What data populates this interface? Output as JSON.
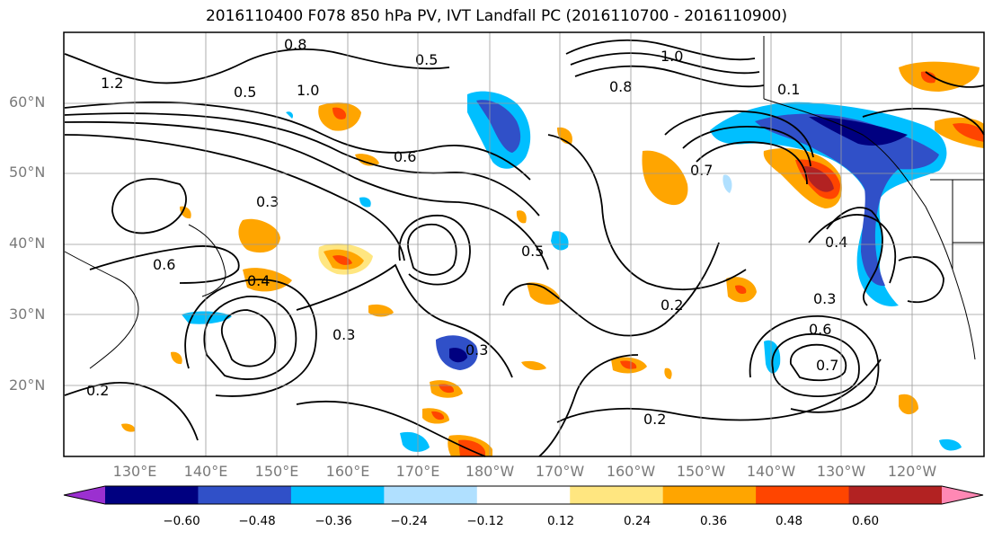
{
  "title": "2016110400 F078 850 hPa PV, IVT Landfall PC (2016110700 - 2016110900)",
  "map": {
    "lat_labels": [
      "60°N",
      "50°N",
      "40°N",
      "30°N",
      "20°N"
    ],
    "lon_labels": [
      "130°E",
      "140°E",
      "150°E",
      "160°E",
      "170°E",
      "180°W",
      "170°W",
      "160°W",
      "150°W",
      "140°W",
      "130°W",
      "120°W"
    ],
    "contour_labels": [
      "0.8",
      "1.0",
      "1.2",
      "0.5",
      "0.6",
      "0.7",
      "0.1",
      "0.3",
      "0.4",
      "0.2",
      "0.5",
      "0.3",
      "0.2",
      "0.6",
      "0.7",
      "0.8",
      "1.0",
      "0.5",
      "0.3",
      "0.6",
      "0.4",
      "0.3",
      "0.2"
    ]
  },
  "colorbar": {
    "ticks": [
      "−0.60",
      "−0.48",
      "−0.36",
      "−0.24",
      "−0.12",
      "0.12",
      "0.24",
      "0.36",
      "0.48",
      "0.60"
    ],
    "colors": [
      "#9b30d0",
      "#000080",
      "#3050c8",
      "#00bfff",
      "#b0e0ff",
      "#ffffff",
      "#ffe680",
      "#ffa500",
      "#ff4500",
      "#b22222",
      "#ff88b4"
    ]
  }
}
